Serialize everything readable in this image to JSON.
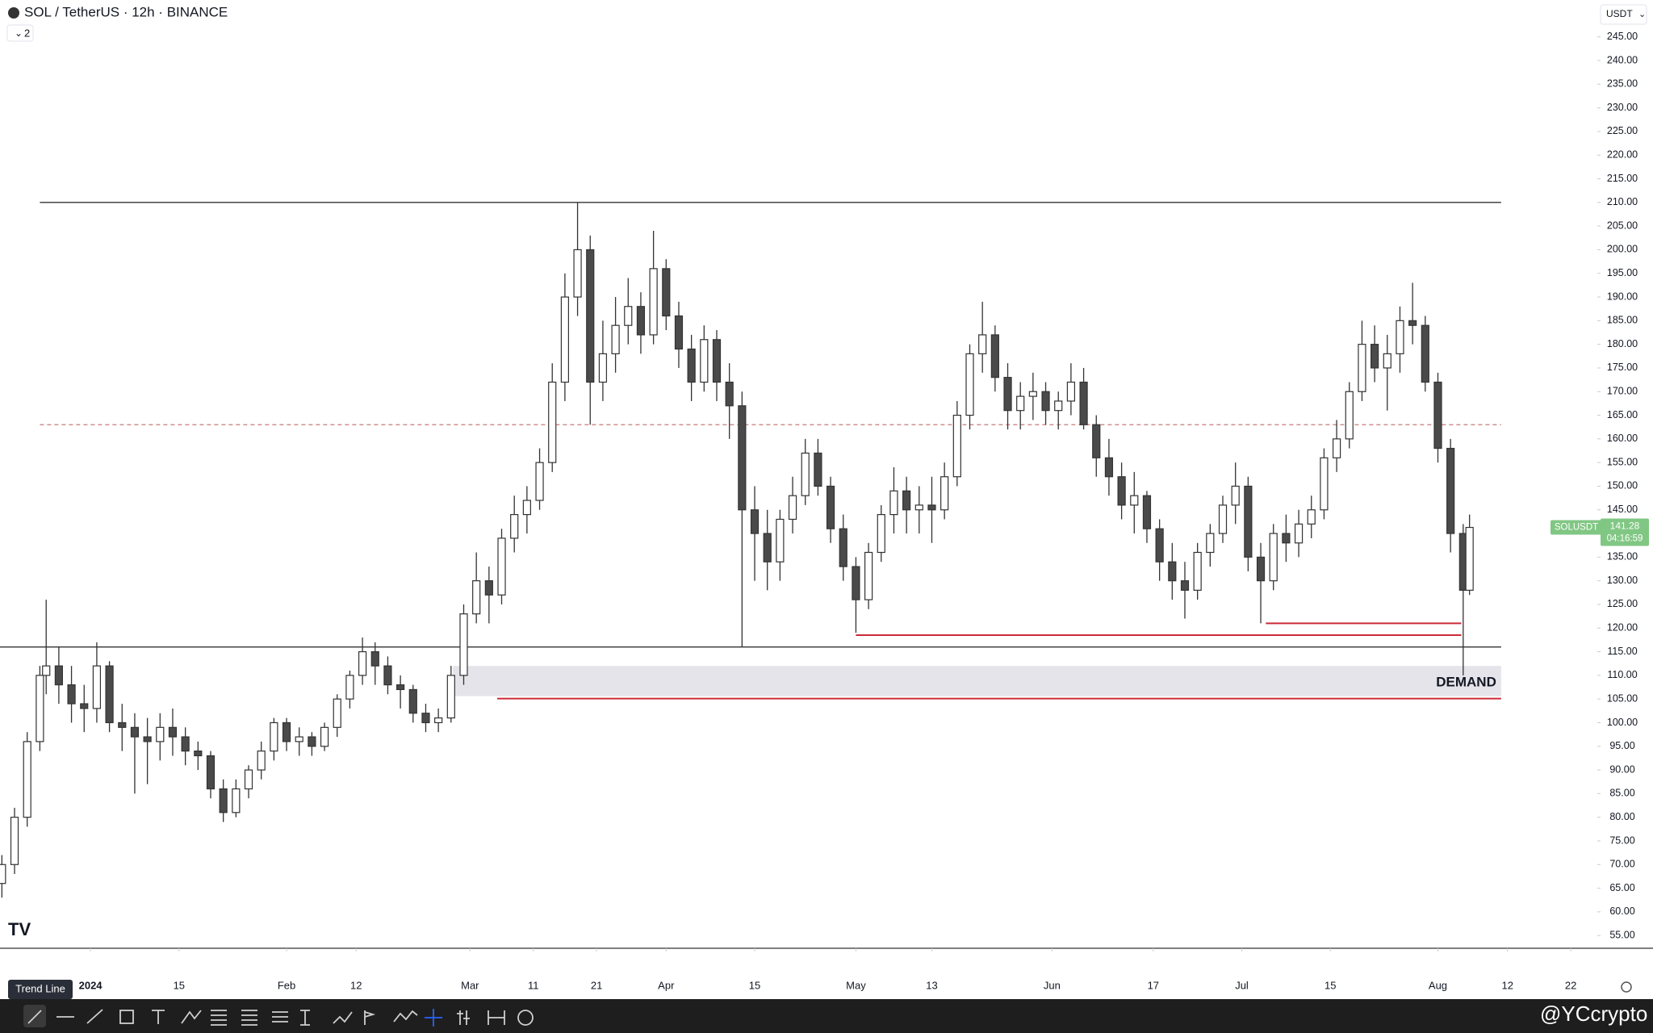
{
  "header": {
    "title": "SOL / TetherUS · 12h · BINANCE",
    "indicators": "2",
    "currency": "USDT"
  },
  "chart_data": {
    "type": "candlestick",
    "symbol": "SOLUSDT",
    "last_price": 141.28,
    "countdown": "04:16:59",
    "up_color": "#ffffff",
    "down_color": "#4a4a4a",
    "xlim": [
      -14.3,
      238.2
    ],
    "ylim": [
      52.3,
      252.8
    ],
    "grid": false,
    "xticks": [
      {
        "value": 0,
        "label": "2024"
      },
      {
        "value": 14,
        "label": "15"
      },
      {
        "value": 31,
        "label": "Feb"
      },
      {
        "value": 42,
        "label": "12"
      },
      {
        "value": 60,
        "label": "Mar"
      },
      {
        "value": 70,
        "label": "11"
      },
      {
        "value": 80,
        "label": "21"
      },
      {
        "value": 91,
        "label": "Apr"
      },
      {
        "value": 105,
        "label": "15"
      },
      {
        "value": 121,
        "label": "May"
      },
      {
        "value": 133,
        "label": "13"
      },
      {
        "value": 152,
        "label": "Jun"
      },
      {
        "value": 168,
        "label": "17"
      },
      {
        "value": 182,
        "label": "Jul"
      },
      {
        "value": 196,
        "label": "15"
      },
      {
        "value": 213,
        "label": "Aug"
      },
      {
        "value": 224,
        "label": "12"
      },
      {
        "value": 234,
        "label": "22"
      }
    ],
    "yticks": [
      {
        "value": 55,
        "label": "55.00"
      },
      {
        "value": 60,
        "label": "60.00"
      },
      {
        "value": 65,
        "label": "65.00"
      },
      {
        "value": 70,
        "label": "70.00"
      },
      {
        "value": 75,
        "label": "75.00"
      },
      {
        "value": 80,
        "label": "80.00"
      },
      {
        "value": 85,
        "label": "85.00"
      },
      {
        "value": 90,
        "label": "90.00"
      },
      {
        "value": 95,
        "label": "95.00"
      },
      {
        "value": 100,
        "label": "100.00"
      },
      {
        "value": 105,
        "label": "105.00"
      },
      {
        "value": 110,
        "label": "110.00"
      },
      {
        "value": 115,
        "label": "115.00"
      },
      {
        "value": 120,
        "label": "120.00"
      },
      {
        "value": 125,
        "label": "125.00"
      },
      {
        "value": 130,
        "label": "130.00"
      },
      {
        "value": 135,
        "label": "135.00"
      },
      {
        "value": 140,
        "label": "140.00"
      },
      {
        "value": 145,
        "label": "145.00"
      },
      {
        "value": 150,
        "label": "150.00"
      },
      {
        "value": 155,
        "label": "155.00"
      },
      {
        "value": 160,
        "label": "160.00"
      },
      {
        "value": 165,
        "label": "165.00"
      },
      {
        "value": 170,
        "label": "170.00"
      },
      {
        "value": 175,
        "label": "175.00"
      },
      {
        "value": 180,
        "label": "180.00"
      },
      {
        "value": 185,
        "label": "185.00"
      },
      {
        "value": 190,
        "label": "190.00"
      },
      {
        "value": 195,
        "label": "195.00"
      },
      {
        "value": 200,
        "label": "200.00"
      },
      {
        "value": 205,
        "label": "205.00"
      },
      {
        "value": 210,
        "label": "210.00"
      },
      {
        "value": 215,
        "label": "215.00"
      },
      {
        "value": 220,
        "label": "220.00"
      },
      {
        "value": 225,
        "label": "225.00"
      },
      {
        "value": 230,
        "label": "230.00"
      },
      {
        "value": 235,
        "label": "235.00"
      },
      {
        "value": 240,
        "label": "240.00"
      },
      {
        "value": 245,
        "label": "245.00"
      }
    ],
    "x": [
      -14,
      -12,
      -10,
      -8,
      -7,
      -5,
      -3,
      -1,
      1,
      3,
      5,
      7,
      9,
      11,
      13,
      15,
      17,
      19,
      21,
      23,
      25,
      27,
      29,
      31,
      33,
      35,
      37,
      39,
      41,
      43,
      45,
      47,
      49,
      51,
      53,
      55,
      57,
      59,
      61,
      63,
      65,
      67,
      69,
      71,
      73,
      75,
      77,
      79,
      81,
      83,
      85,
      87,
      89,
      91,
      93,
      95,
      97,
      99,
      101,
      103,
      105,
      107,
      109,
      111,
      113,
      115,
      117,
      119,
      121,
      123,
      125,
      127,
      129,
      131,
      133,
      135,
      137,
      139,
      141,
      143,
      145,
      147,
      149,
      151,
      153,
      155,
      157,
      159,
      161,
      163,
      165,
      167,
      169,
      171,
      173,
      175,
      177,
      179,
      181,
      183,
      185,
      187,
      189,
      191,
      193,
      195,
      197,
      199,
      201,
      203,
      205,
      207,
      209,
      211,
      213,
      215,
      217,
      218
    ],
    "ohlc": [
      [
        66,
        72,
        63,
        70
      ],
      [
        70,
        82,
        68,
        80
      ],
      [
        80,
        98,
        78,
        96
      ],
      [
        96,
        112,
        94,
        110
      ],
      [
        110,
        126,
        106,
        112
      ],
      [
        112,
        116,
        104,
        108
      ],
      [
        108,
        112,
        100,
        104
      ],
      [
        104,
        108,
        98,
        103
      ],
      [
        103,
        117,
        100,
        112
      ],
      [
        112,
        113,
        98,
        100
      ],
      [
        100,
        104,
        94,
        99
      ],
      [
        99,
        102,
        85,
        97
      ],
      [
        97,
        101,
        87,
        96
      ],
      [
        96,
        102,
        92,
        99
      ],
      [
        99,
        103,
        93,
        97
      ],
      [
        97,
        99,
        91,
        94
      ],
      [
        94,
        96,
        90,
        93
      ],
      [
        93,
        94,
        84,
        86
      ],
      [
        86,
        88,
        79,
        81
      ],
      [
        81,
        88,
        80,
        86
      ],
      [
        86,
        91,
        84,
        90
      ],
      [
        90,
        96,
        88,
        94
      ],
      [
        94,
        101,
        92,
        100
      ],
      [
        100,
        101,
        94,
        96
      ],
      [
        96,
        99,
        93,
        97
      ],
      [
        97,
        98,
        93,
        95
      ],
      [
        95,
        100,
        94,
        99
      ],
      [
        99,
        106,
        97,
        105
      ],
      [
        105,
        111,
        103,
        110
      ],
      [
        110,
        118,
        108,
        115
      ],
      [
        115,
        117,
        108,
        112
      ],
      [
        112,
        114,
        106,
        108
      ],
      [
        108,
        110,
        103,
        107
      ],
      [
        107,
        108,
        100,
        102
      ],
      [
        102,
        104,
        98,
        100
      ],
      [
        100,
        103,
        98,
        101
      ],
      [
        101,
        112,
        100,
        110
      ],
      [
        110,
        125,
        108,
        123
      ],
      [
        123,
        136,
        121,
        130
      ],
      [
        130,
        133,
        121,
        127
      ],
      [
        127,
        141,
        125,
        139
      ],
      [
        139,
        148,
        136,
        144
      ],
      [
        144,
        150,
        140,
        147
      ],
      [
        147,
        158,
        145,
        155
      ],
      [
        155,
        176,
        153,
        172
      ],
      [
        172,
        195,
        168,
        190
      ],
      [
        190,
        210,
        186,
        200
      ],
      [
        200,
        203,
        163,
        172
      ],
      [
        172,
        185,
        168,
        178
      ],
      [
        178,
        190,
        174,
        184
      ],
      [
        184,
        194,
        180,
        188
      ],
      [
        188,
        191,
        178,
        182
      ],
      [
        182,
        204,
        180,
        196
      ],
      [
        196,
        198,
        183,
        186
      ],
      [
        186,
        189,
        175,
        179
      ],
      [
        179,
        182,
        168,
        172
      ],
      [
        172,
        184,
        170,
        181
      ],
      [
        181,
        183,
        168,
        172
      ],
      [
        172,
        176,
        160,
        167
      ],
      [
        167,
        170,
        116,
        145
      ],
      [
        145,
        150,
        130,
        140
      ],
      [
        140,
        145,
        128,
        134
      ],
      [
        134,
        145,
        130,
        143
      ],
      [
        143,
        152,
        140,
        148
      ],
      [
        148,
        160,
        146,
        157
      ],
      [
        157,
        160,
        148,
        150
      ],
      [
        150,
        152,
        138,
        141
      ],
      [
        141,
        144,
        130,
        133
      ],
      [
        133,
        135,
        119,
        126
      ],
      [
        126,
        138,
        124,
        136
      ],
      [
        136,
        146,
        134,
        144
      ],
      [
        144,
        154,
        140,
        149
      ],
      [
        149,
        152,
        140,
        145
      ],
      [
        145,
        150,
        140,
        146
      ],
      [
        146,
        152,
        138,
        145
      ],
      [
        145,
        155,
        143,
        152
      ],
      [
        152,
        168,
        150,
        165
      ],
      [
        165,
        180,
        162,
        178
      ],
      [
        178,
        189,
        174,
        182
      ],
      [
        182,
        184,
        170,
        173
      ],
      [
        173,
        176,
        162,
        166
      ],
      [
        166,
        172,
        162,
        169
      ],
      [
        169,
        174,
        164,
        170
      ],
      [
        170,
        172,
        163,
        166
      ],
      [
        166,
        170,
        162,
        168
      ],
      [
        168,
        176,
        165,
        172
      ],
      [
        172,
        175,
        162,
        163
      ],
      [
        163,
        165,
        152,
        156
      ],
      [
        156,
        160,
        148,
        152
      ],
      [
        152,
        155,
        143,
        146
      ],
      [
        146,
        153,
        140,
        148
      ],
      [
        148,
        149,
        138,
        141
      ],
      [
        141,
        143,
        130,
        134
      ],
      [
        134,
        138,
        126,
        130
      ],
      [
        130,
        134,
        122,
        128
      ],
      [
        128,
        138,
        126,
        136
      ],
      [
        136,
        142,
        133,
        140
      ],
      [
        140,
        148,
        138,
        146
      ],
      [
        146,
        155,
        142,
        150
      ],
      [
        150,
        152,
        132,
        135
      ],
      [
        135,
        138,
        121,
        130
      ],
      [
        130,
        142,
        128,
        140
      ],
      [
        140,
        144,
        134,
        138
      ],
      [
        138,
        145,
        135,
        142
      ],
      [
        142,
        148,
        139,
        145
      ],
      [
        145,
        158,
        143,
        156
      ],
      [
        156,
        164,
        153,
        160
      ],
      [
        160,
        172,
        158,
        170
      ],
      [
        170,
        185,
        168,
        180
      ],
      [
        180,
        184,
        172,
        175
      ],
      [
        175,
        182,
        166,
        178
      ],
      [
        178,
        188,
        174,
        185
      ],
      [
        185,
        193,
        180,
        184
      ],
      [
        184,
        186,
        170,
        172
      ],
      [
        172,
        174,
        155,
        158
      ],
      [
        158,
        160,
        136,
        140
      ],
      [
        140,
        142,
        110,
        128
      ],
      [
        128,
        144,
        127,
        141.28
      ]
    ],
    "lines": [
      {
        "price": 210,
        "x": [
          -8,
          223
        ],
        "color": "#333333",
        "style": "solid"
      },
      {
        "price": 163,
        "x": [
          -8,
          223
        ],
        "color": "#c77b7b",
        "style": "dashed"
      },
      {
        "price": 116,
        "x": [
          -14.3,
          223
        ],
        "color": "#333333",
        "style": "solid"
      },
      {
        "price": 105.1,
        "x": [
          64.3,
          223
        ],
        "color": "#cc2a36",
        "style": "solid"
      },
      {
        "price": 118.5,
        "x": [
          121,
          216.7
        ],
        "color": "#cc2a36",
        "style": "solid"
      },
      {
        "price": 121,
        "x": [
          185.8,
          216.7
        ],
        "color": "#cc2a36",
        "style": "solid"
      }
    ],
    "zone": {
      "label": "DEMAND",
      "low": 105.6,
      "high": 112,
      "x": [
        57.3,
        223
      ],
      "color": "#e4e4ea"
    }
  },
  "toolbar": {
    "tooltip": "Trend Line"
  },
  "watermark": "@YCcrypto"
}
